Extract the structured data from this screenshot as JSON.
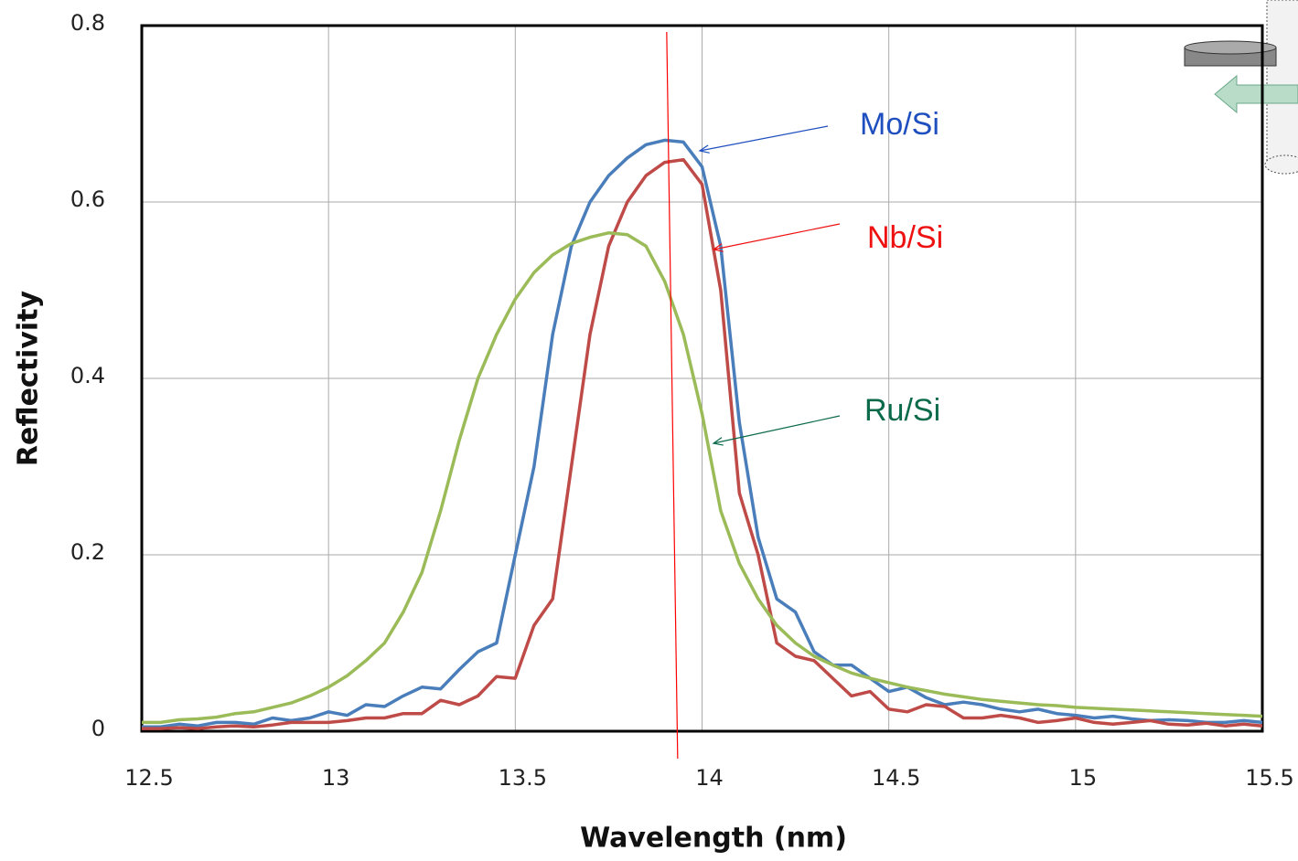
{
  "chart_data": {
    "type": "line",
    "xlabel": "Wavelength (nm)",
    "ylabel": "Reflectivity",
    "xlim": [
      12.5,
      15.5
    ],
    "ylim": [
      0,
      0.8
    ],
    "xticks": [
      12.5,
      13,
      13.5,
      14,
      14.5,
      15,
      15.5
    ],
    "yticks": [
      0,
      0.2,
      0.4,
      0.6,
      0.8
    ],
    "grid": true,
    "vline": {
      "x": 13.92,
      "color": "#ff0000"
    },
    "x": [
      12.5,
      12.55,
      12.6,
      12.65,
      12.7,
      12.75,
      12.8,
      12.85,
      12.9,
      12.95,
      13.0,
      13.05,
      13.1,
      13.15,
      13.2,
      13.25,
      13.3,
      13.35,
      13.4,
      13.45,
      13.5,
      13.55,
      13.6,
      13.65,
      13.7,
      13.75,
      13.8,
      13.85,
      13.9,
      13.95,
      14.0,
      14.05,
      14.1,
      14.15,
      14.2,
      14.25,
      14.3,
      14.35,
      14.4,
      14.45,
      14.5,
      14.55,
      14.6,
      14.65,
      14.7,
      14.75,
      14.8,
      14.85,
      14.9,
      14.95,
      15.0,
      15.05,
      15.1,
      15.15,
      15.2,
      15.25,
      15.3,
      15.35,
      15.4,
      15.45,
      15.5
    ],
    "series": [
      {
        "name": "Mo/Si",
        "color": "#4a7ebb",
        "label_color": "#1f4fbf",
        "values": [
          0.005,
          0.005,
          0.008,
          0.006,
          0.01,
          0.01,
          0.008,
          0.015,
          0.012,
          0.015,
          0.022,
          0.018,
          0.03,
          0.028,
          0.04,
          0.05,
          0.048,
          0.07,
          0.09,
          0.1,
          0.2,
          0.3,
          0.45,
          0.55,
          0.6,
          0.63,
          0.65,
          0.665,
          0.67,
          0.668,
          0.64,
          0.55,
          0.35,
          0.22,
          0.15,
          0.135,
          0.09,
          0.075,
          0.075,
          0.06,
          0.045,
          0.05,
          0.038,
          0.03,
          0.033,
          0.03,
          0.025,
          0.022,
          0.025,
          0.02,
          0.018,
          0.015,
          0.017,
          0.014,
          0.012,
          0.013,
          0.012,
          0.01,
          0.01,
          0.012,
          0.01
        ]
      },
      {
        "name": "Nb/Si",
        "color": "#be4b48",
        "label_color": "#ee1111",
        "values": [
          0.003,
          0.003,
          0.004,
          0.003,
          0.005,
          0.006,
          0.005,
          0.007,
          0.01,
          0.01,
          0.01,
          0.012,
          0.015,
          0.015,
          0.02,
          0.02,
          0.035,
          0.03,
          0.04,
          0.062,
          0.06,
          0.12,
          0.15,
          0.3,
          0.45,
          0.55,
          0.6,
          0.63,
          0.645,
          0.648,
          0.62,
          0.5,
          0.27,
          0.2,
          0.1,
          0.085,
          0.08,
          0.06,
          0.04,
          0.045,
          0.025,
          0.022,
          0.03,
          0.028,
          0.015,
          0.015,
          0.018,
          0.015,
          0.01,
          0.012,
          0.015,
          0.01,
          0.008,
          0.01,
          0.012,
          0.008,
          0.007,
          0.009,
          0.006,
          0.008,
          0.006
        ]
      },
      {
        "name": "Ru/Si",
        "color": "#9bbb59",
        "label_color": "#0a6a4a",
        "values": [
          0.01,
          0.01,
          0.013,
          0.014,
          0.016,
          0.02,
          0.022,
          0.027,
          0.032,
          0.04,
          0.05,
          0.063,
          0.08,
          0.1,
          0.135,
          0.18,
          0.25,
          0.33,
          0.4,
          0.45,
          0.49,
          0.52,
          0.54,
          0.553,
          0.56,
          0.565,
          0.563,
          0.55,
          0.51,
          0.45,
          0.36,
          0.25,
          0.19,
          0.15,
          0.12,
          0.1,
          0.085,
          0.075,
          0.066,
          0.06,
          0.055,
          0.05,
          0.046,
          0.042,
          0.039,
          0.036,
          0.034,
          0.032,
          0.03,
          0.029,
          0.027,
          0.026,
          0.025,
          0.024,
          0.023,
          0.022,
          0.021,
          0.02,
          0.019,
          0.018,
          0.017
        ]
      }
    ]
  }
}
